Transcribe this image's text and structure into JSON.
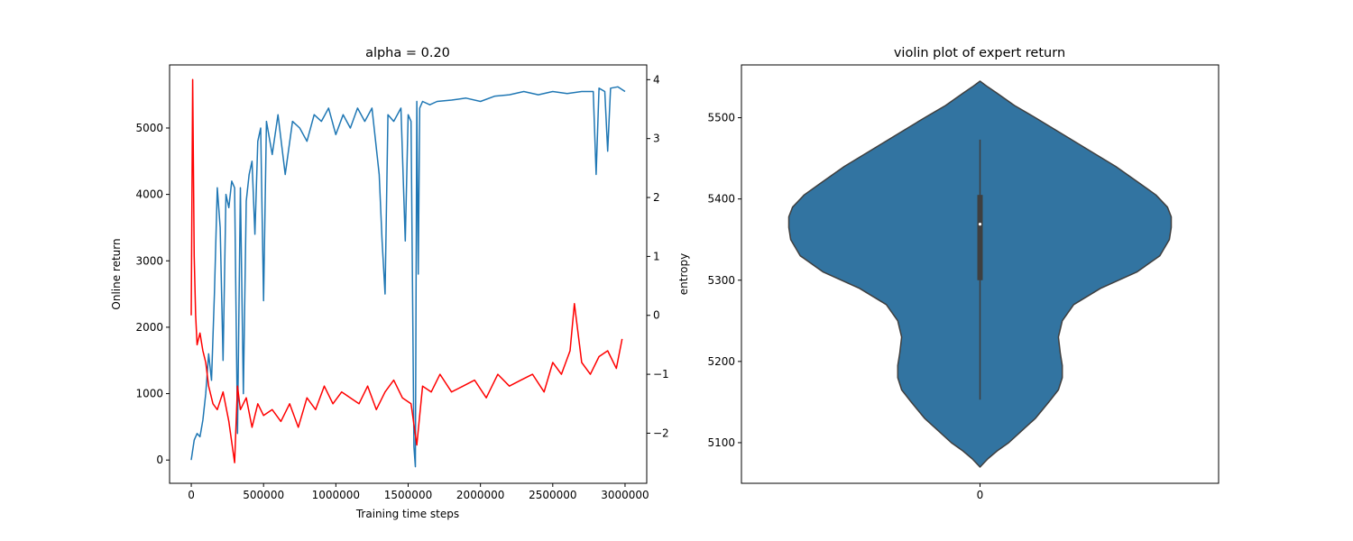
{
  "chart_data": [
    {
      "type": "line",
      "title": "alpha = 0.20",
      "xlabel": "Training time steps",
      "ylabel": "Online return",
      "y2label": "entropy",
      "xlim": [
        -150000,
        3150000
      ],
      "ylim": [
        -350,
        5950
      ],
      "y2lim": [
        -2.85,
        4.25
      ],
      "xticks": [
        0,
        500000,
        1000000,
        1500000,
        2000000,
        2500000,
        3000000
      ],
      "xtick_labels": [
        "0",
        "500000",
        "1000000",
        "1500000",
        "2000000",
        "2500000",
        "3000000"
      ],
      "yticks": [
        0,
        1000,
        2000,
        3000,
        4000,
        5000
      ],
      "ytick_labels": [
        "0",
        "1000",
        "2000",
        "3000",
        "4000",
        "5000"
      ],
      "y2ticks": [
        -2,
        -1,
        0,
        1,
        2,
        3,
        4
      ],
      "y2tick_labels": [
        "−2",
        "−1",
        "0",
        "1",
        "2",
        "3",
        "4"
      ],
      "grid": false,
      "legend": "none",
      "series": [
        {
          "axis": "left",
          "color": "#1f77b4",
          "x": [
            0,
            20000,
            40000,
            60000,
            80000,
            100000,
            120000,
            140000,
            160000,
            180000,
            200000,
            220000,
            240000,
            260000,
            280000,
            300000,
            320000,
            340000,
            360000,
            380000,
            400000,
            420000,
            440000,
            460000,
            480000,
            500000,
            520000,
            560000,
            600000,
            650000,
            700000,
            750000,
            800000,
            850000,
            900000,
            950000,
            1000000,
            1050000,
            1100000,
            1150000,
            1200000,
            1250000,
            1300000,
            1320000,
            1340000,
            1360000,
            1400000,
            1450000,
            1480000,
            1500000,
            1520000,
            1540000,
            1550000,
            1560000,
            1570000,
            1580000,
            1600000,
            1650000,
            1700000,
            1800000,
            1900000,
            2000000,
            2100000,
            2200000,
            2300000,
            2400000,
            2500000,
            2600000,
            2700000,
            2780000,
            2800000,
            2820000,
            2860000,
            2880000,
            2900000,
            2950000,
            3000000
          ],
          "values": [
            0,
            300,
            400,
            350,
            600,
            1000,
            1600,
            1200,
            2500,
            4100,
            3500,
            1500,
            4000,
            3800,
            4200,
            4100,
            400,
            4100,
            1000,
            3900,
            4300,
            4500,
            3400,
            4800,
            5000,
            2400,
            5100,
            4600,
            5200,
            4300,
            5100,
            5000,
            4800,
            5200,
            5100,
            5300,
            4900,
            5200,
            5000,
            5300,
            5100,
            5300,
            4300,
            3300,
            2500,
            5200,
            5100,
            5300,
            3300,
            5200,
            5100,
            200,
            -100,
            5400,
            2800,
            5300,
            5400,
            5350,
            5400,
            5420,
            5450,
            5400,
            5480,
            5500,
            5550,
            5500,
            5550,
            5520,
            5550,
            5550,
            4300,
            5600,
            5550,
            4650,
            5600,
            5620,
            5550
          ]
        },
        {
          "axis": "right",
          "color": "#ff0000",
          "x": [
            0,
            10000,
            20000,
            30000,
            40000,
            60000,
            80000,
            100000,
            120000,
            150000,
            180000,
            220000,
            260000,
            300000,
            320000,
            340000,
            380000,
            420000,
            460000,
            500000,
            560000,
            620000,
            680000,
            740000,
            800000,
            860000,
            920000,
            980000,
            1040000,
            1100000,
            1160000,
            1220000,
            1280000,
            1340000,
            1400000,
            1460000,
            1520000,
            1560000,
            1600000,
            1660000,
            1720000,
            1800000,
            1880000,
            1960000,
            2040000,
            2120000,
            2200000,
            2280000,
            2360000,
            2440000,
            2500000,
            2560000,
            2620000,
            2650000,
            2700000,
            2760000,
            2820000,
            2880000,
            2940000,
            2980000
          ],
          "values": [
            0.0,
            4.0,
            1.0,
            0.0,
            -0.5,
            -0.3,
            -0.6,
            -0.8,
            -1.2,
            -1.5,
            -1.6,
            -1.3,
            -1.8,
            -2.5,
            -1.2,
            -1.6,
            -1.4,
            -1.9,
            -1.5,
            -1.7,
            -1.6,
            -1.8,
            -1.5,
            -1.9,
            -1.4,
            -1.6,
            -1.2,
            -1.5,
            -1.3,
            -1.4,
            -1.5,
            -1.2,
            -1.6,
            -1.3,
            -1.1,
            -1.4,
            -1.5,
            -2.2,
            -1.2,
            -1.3,
            -1.0,
            -1.3,
            -1.2,
            -1.1,
            -1.4,
            -1.0,
            -1.2,
            -1.1,
            -1.0,
            -1.3,
            -0.8,
            -1.0,
            -0.6,
            0.2,
            -0.8,
            -1.0,
            -0.7,
            -0.6,
            -0.9,
            -0.4
          ]
        }
      ]
    },
    {
      "type": "violin",
      "title": "violin plot of expert return",
      "xtick_labels": [
        "0"
      ],
      "ylim": [
        5050,
        5565
      ],
      "yticks": [
        5100,
        5200,
        5300,
        5400,
        5500
      ],
      "ytick_labels": [
        "5100",
        "5200",
        "5300",
        "5400",
        "5500"
      ],
      "grid": false,
      "legend": "none",
      "color": "#3274a1",
      "edge_color": "#3f3f3f",
      "box_color": "#3f3f3f",
      "median_color": "#ffffff",
      "median": 5369,
      "quartiles": [
        5300,
        5405
      ],
      "whiskers": [
        5153,
        5473
      ],
      "density_y": [
        5070,
        5080,
        5090,
        5100,
        5115,
        5130,
        5150,
        5165,
        5180,
        5195,
        5210,
        5230,
        5250,
        5270,
        5290,
        5310,
        5330,
        5350,
        5365,
        5378,
        5390,
        5405,
        5420,
        5440,
        5460,
        5480,
        5500,
        5515,
        5530,
        5538,
        5545
      ],
      "density_width": [
        0.0,
        0.04,
        0.09,
        0.15,
        0.22,
        0.29,
        0.36,
        0.41,
        0.43,
        0.43,
        0.42,
        0.41,
        0.43,
        0.49,
        0.63,
        0.82,
        0.94,
        0.99,
        1.0,
        1.0,
        0.98,
        0.92,
        0.83,
        0.71,
        0.57,
        0.43,
        0.29,
        0.18,
        0.09,
        0.04,
        0.0
      ]
    }
  ]
}
